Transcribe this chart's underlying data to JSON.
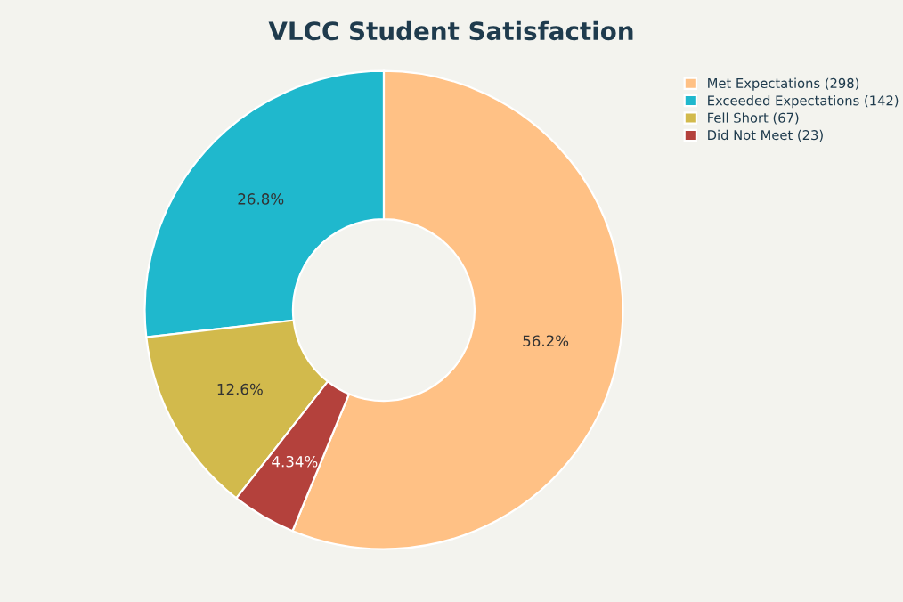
{
  "chart_data": {
    "type": "donut",
    "title": "VLCC Student Satisfaction",
    "categories": [
      "Met Expectations (298)",
      "Exceeded Expectations (142)",
      "Fell Short (67)",
      "Did Not Meet (23)"
    ],
    "values": [
      56.2,
      26.8,
      12.6,
      4.34
    ],
    "colors": [
      "#ffc185",
      "#1fb8cd",
      "#d2ba4c",
      "#b4413c"
    ],
    "value_labels": [
      "56.2%",
      "26.8%",
      "12.6%",
      "4.34%"
    ],
    "legend": "top right"
  }
}
